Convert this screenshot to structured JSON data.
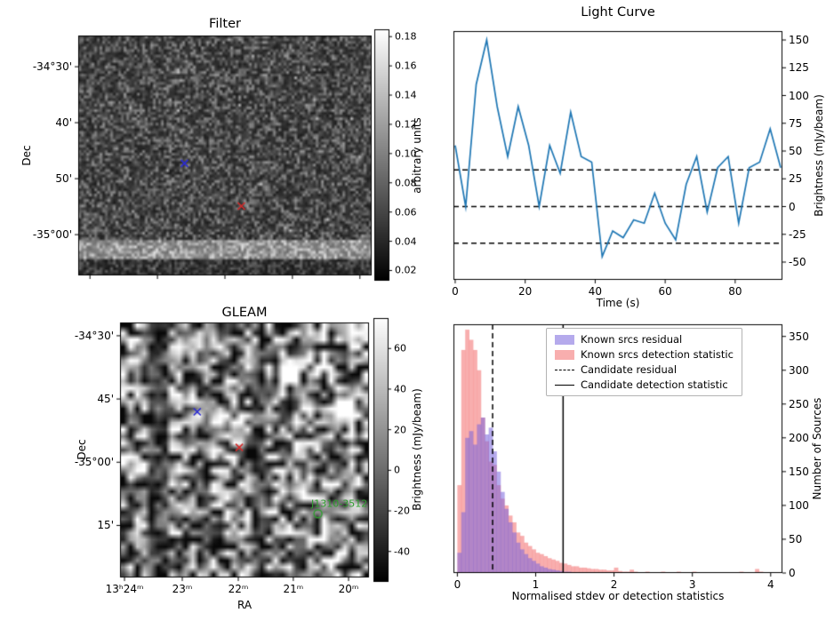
{
  "figure": {
    "background": "#ffffff"
  },
  "panels": {
    "filter": {
      "title": "Filter",
      "ylabel": "Dec",
      "yticks": [
        {
          "label": "-34°30'",
          "rel": 0.13
        },
        {
          "label": "40'",
          "rel": 0.3633
        },
        {
          "label": "50'",
          "rel": 0.5967
        },
        {
          "label": "-35°00'",
          "rel": 0.83
        }
      ],
      "colorbar": {
        "label": "arbitrary units",
        "vmin": 0.013,
        "vmax": 0.185,
        "ticks": [
          {
            "label": "0.18",
            "v": 0.18
          },
          {
            "label": "0.16",
            "v": 0.16
          },
          {
            "label": "0.14",
            "v": 0.14
          },
          {
            "label": "0.12",
            "v": 0.12
          },
          {
            "label": "0.10",
            "v": 0.1
          },
          {
            "label": "0.08",
            "v": 0.08
          },
          {
            "label": "0.06",
            "v": 0.06
          },
          {
            "label": "0.04",
            "v": 0.04
          },
          {
            "label": "0.02",
            "v": 0.02
          }
        ]
      },
      "markers": [
        {
          "shape": "x",
          "color": "#2a2ad4",
          "rx": 0.362,
          "ry": 0.533
        },
        {
          "shape": "x",
          "color": "#d42a2a",
          "rx": 0.556,
          "ry": 0.711
        }
      ]
    },
    "gleam": {
      "title": "GLEAM",
      "xlabel": "RA",
      "ylabel": "Dec",
      "xticks": [
        {
          "label": "13ʰ24ᵐ",
          "rel": 0.018
        },
        {
          "label": "23ᵐ",
          "rel": 0.25
        },
        {
          "label": "22ᵐ",
          "rel": 0.475
        },
        {
          "label": "21ᵐ",
          "rel": 0.696
        },
        {
          "label": "20ᵐ",
          "rel": 0.918
        }
      ],
      "yticks": [
        {
          "label": "-34°30'",
          "rel": 0.052
        },
        {
          "label": "45'",
          "rel": 0.3
        },
        {
          "label": "-35°00'",
          "rel": 0.548
        },
        {
          "label": "15'",
          "rel": 0.796
        }
      ],
      "colorbar": {
        "label": "Brightness (mJy/beam)",
        "vmin": -55,
        "vmax": 75,
        "ticks": [
          {
            "label": "60",
            "v": 60
          },
          {
            "label": "40",
            "v": 40
          },
          {
            "label": "20",
            "v": 20
          },
          {
            "label": "0",
            "v": 0
          },
          {
            "label": "-20",
            "v": -20
          },
          {
            "label": "-40",
            "v": -40
          }
        ]
      },
      "markers": [
        {
          "shape": "x",
          "color": "#2a2ad4",
          "rx": 0.31,
          "ry": 0.35
        },
        {
          "shape": "x",
          "color": "#d42a2a",
          "rx": 0.479,
          "ry": 0.49
        },
        {
          "shape": "circle",
          "color": "#2e9e2e",
          "rx": 0.795,
          "ry": 0.75
        }
      ],
      "source_label": {
        "text": "J1310-3512",
        "color": "#2e9e2e",
        "rx": 0.768,
        "ry": 0.712
      }
    }
  },
  "chart_data": [
    {
      "id": "light_curve",
      "type": "line",
      "title": "Light Curve",
      "xlabel": "Time (s)",
      "ylabel": "Brightness (mJy/beam)",
      "line_color": "#1f77b4",
      "x": [
        0,
        3,
        6,
        9,
        12,
        15,
        18,
        21,
        24,
        27,
        30,
        33,
        36,
        39,
        42,
        45,
        48,
        51,
        54,
        57,
        60,
        63,
        66,
        69,
        72,
        75,
        78,
        81,
        84,
        87,
        90,
        93
      ],
      "y": [
        55,
        0,
        110,
        150,
        90,
        45,
        90,
        55,
        0,
        55,
        30,
        85,
        45,
        40,
        -45,
        -22,
        -28,
        -12,
        -15,
        12,
        -15,
        -30,
        20,
        45,
        -5,
        35,
        45,
        -15,
        35,
        40,
        70,
        35
      ],
      "hlines": [
        {
          "y": 33,
          "style": "dashed"
        },
        {
          "y": 0,
          "style": "dashed"
        },
        {
          "y": -33,
          "style": "dashed"
        }
      ],
      "xlim": [
        -0.5,
        93.5
      ],
      "ylim": [
        -66,
        158
      ],
      "xticks": [
        0,
        20,
        40,
        60,
        80
      ],
      "yticks": [
        -50,
        -25,
        0,
        25,
        50,
        75,
        100,
        125,
        150
      ],
      "yaxis_side": "right",
      "grid": false
    },
    {
      "id": "residual_histogram",
      "type": "bar",
      "title": "",
      "xlabel": "Normalised stdev or detection statistics",
      "ylabel": "Number of Sources",
      "bin_width": 0.05,
      "series": [
        {
          "name": "Known srcs residual",
          "color": "rgba(120,100,220,0.55)",
          "bin_start": 0,
          "counts": [
            30,
            90,
            200,
            210,
            190,
            220,
            230,
            205,
            215,
            180,
            150,
            120,
            95,
            75,
            60,
            45,
            35,
            28,
            22,
            18,
            14,
            10,
            8,
            6,
            5,
            4,
            3,
            2,
            2,
            1,
            1
          ]
        },
        {
          "name": "Known srcs detection statistic",
          "color": "rgba(244,130,130,0.65)",
          "bin_start": 0,
          "counts": [
            130,
            330,
            360,
            345,
            330,
            300,
            230,
            195,
            165,
            160,
            130,
            110,
            100,
            85,
            75,
            60,
            55,
            45,
            40,
            35,
            30,
            28,
            25,
            22,
            20,
            18,
            15,
            14,
            12,
            10,
            10,
            8,
            8,
            7,
            6,
            6,
            5,
            5,
            4,
            4,
            8,
            3,
            2,
            2,
            5,
            2,
            1,
            1,
            2,
            1,
            1,
            0,
            2,
            0,
            1,
            0,
            2,
            0,
            1,
            0,
            2,
            0,
            1,
            0,
            1,
            0,
            1,
            0,
            1,
            0,
            1,
            0,
            2,
            0,
            1,
            0,
            6,
            2,
            0,
            0
          ]
        }
      ],
      "vlines": [
        {
          "x": 0.45,
          "style": "dashed",
          "label": "Candidate residual"
        },
        {
          "x": 1.35,
          "style": "solid",
          "label": "Candidate detection statistic"
        }
      ],
      "xlim": [
        -0.05,
        4.15
      ],
      "ylim": [
        0,
        368
      ],
      "xticks": [
        0,
        1,
        2,
        3,
        4
      ],
      "yticks": [
        0,
        50,
        100,
        150,
        200,
        250,
        300,
        350
      ],
      "yaxis_side": "right",
      "legend": [
        "Known srcs residual",
        "Known srcs detection statistic",
        "Candidate residual",
        "Candidate detection statistic"
      ],
      "legend_position": "upper right"
    }
  ]
}
